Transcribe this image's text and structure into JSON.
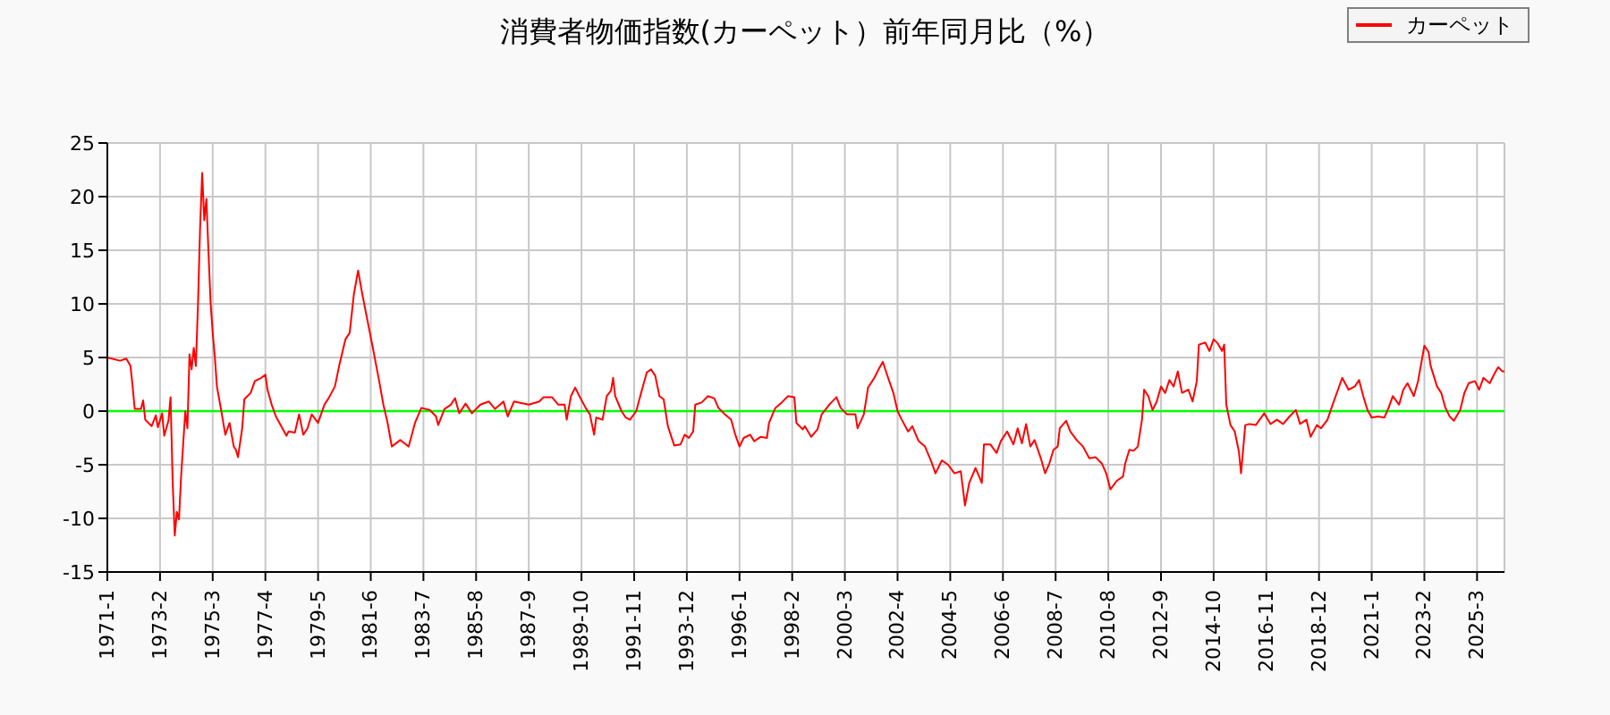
{
  "chart_data": {
    "type": "line",
    "title": "消費者物価指数(カーペット）前年同月比（%）",
    "x": [
      "1971-01",
      "1971-07",
      "1971-10",
      "1971-12",
      "1972-01",
      "1972-02",
      "1972-05",
      "1972-06",
      "1972-07",
      "1972-10",
      "1972-12",
      "1973-01",
      "1973-03",
      "1973-04",
      "1973-06",
      "1973-07",
      "1973-08",
      "1973-09",
      "1973-10",
      "1973-11",
      "1973-12",
      "1974-02",
      "1974-03",
      "1974-04",
      "1974-05",
      "1974-06",
      "1974-07",
      "1974-08",
      "1974-09",
      "1974-10",
      "1974-11",
      "1974-12",
      "1975-01",
      "1975-02",
      "1975-03",
      "1975-04",
      "1975-05",
      "1975-07",
      "1975-09",
      "1975-11",
      "1976-01",
      "1976-02",
      "1976-03",
      "1976-05",
      "1976-06",
      "1976-09",
      "1976-11",
      "1977-02",
      "1977-04",
      "1977-05",
      "1977-07",
      "1977-09",
      "1978-02",
      "1978-03",
      "1978-06",
      "1978-08",
      "1978-10",
      "1978-12",
      "1979-02",
      "1979-05",
      "1979-08",
      "1979-10",
      "1980-01",
      "1980-03",
      "1980-06",
      "1980-08",
      "1980-10",
      "1980-12",
      "1981-02",
      "1981-04",
      "1981-07",
      "1981-10",
      "1981-12",
      "1982-02",
      "1982-04",
      "1982-08",
      "1982-10",
      "1982-12",
      "1983-03",
      "1983-06",
      "1983-10",
      "1984-01",
      "1984-02",
      "1984-05",
      "1984-08",
      "1984-10",
      "1984-12",
      "1985-03",
      "1985-06",
      "1985-10",
      "1986-02",
      "1986-05",
      "1986-09",
      "1986-11",
      "1987-02",
      "1987-09",
      "1988-02",
      "1988-04",
      "1988-08",
      "1988-11",
      "1989-02",
      "1989-03",
      "1989-05",
      "1989-07",
      "1989-09",
      "1989-12",
      "1990-02",
      "1990-04",
      "1990-05",
      "1990-08",
      "1990-10",
      "1990-12",
      "1991-01",
      "1991-02",
      "1991-05",
      "1991-07",
      "1991-09",
      "1991-12",
      "1992-03",
      "1992-05",
      "1992-07",
      "1992-09",
      "1992-11",
      "1993-01",
      "1993-03",
      "1993-06",
      "1993-09",
      "1993-11",
      "1994-01",
      "1994-03",
      "1994-04",
      "1994-07",
      "1994-10",
      "1995-01",
      "1995-03",
      "1995-06",
      "1995-09",
      "1995-11",
      "1996-01",
      "1996-03",
      "1996-06",
      "1996-08",
      "1996-11",
      "1997-02",
      "1997-03",
      "1997-06",
      "1997-09",
      "1997-12",
      "1998-03",
      "1998-04",
      "1998-07",
      "1998-08",
      "1998-11",
      "1999-02",
      "1999-04",
      "1999-08",
      "1999-11",
      "2000-01",
      "2000-04",
      "2000-08",
      "2000-09",
      "2000-12",
      "2001-02",
      "2001-05",
      "2001-07",
      "2001-09",
      "2001-11",
      "2002-02",
      "2002-04",
      "2002-06",
      "2002-09",
      "2002-11",
      "2003-02",
      "2003-05",
      "2003-08",
      "2003-10",
      "2004-01",
      "2004-04",
      "2004-07",
      "2004-10",
      "2004-12",
      "2005-02",
      "2005-05",
      "2005-08",
      "2005-09",
      "2005-12",
      "2006-03",
      "2006-05",
      "2006-08",
      "2006-11",
      "2007-01",
      "2007-03",
      "2007-05",
      "2007-07",
      "2007-09",
      "2007-12",
      "2008-02",
      "2008-04",
      "2008-06",
      "2008-08",
      "2008-09",
      "2008-12",
      "2009-02",
      "2009-05",
      "2009-08",
      "2009-11",
      "2010-02",
      "2010-05",
      "2010-07",
      "2010-09",
      "2010-12",
      "2011-03",
      "2011-04",
      "2011-06",
      "2011-08",
      "2011-10",
      "2011-12",
      "2012-01",
      "2012-03",
      "2012-05",
      "2012-07",
      "2012-09",
      "2012-11",
      "2013-01",
      "2013-03",
      "2013-05",
      "2013-07",
      "2013-10",
      "2013-12",
      "2014-02",
      "2014-03",
      "2014-06",
      "2014-08",
      "2014-10",
      "2014-12",
      "2015-02",
      "2015-03",
      "2015-04",
      "2015-06",
      "2015-08",
      "2015-10",
      "2015-11",
      "2016-01",
      "2016-03",
      "2016-06",
      "2016-10",
      "2017-01",
      "2017-04",
      "2017-07",
      "2017-10",
      "2018-01",
      "2018-03",
      "2018-06",
      "2018-08",
      "2018-11",
      "2019-01",
      "2019-04",
      "2019-07",
      "2019-09",
      "2019-11",
      "2020-02",
      "2020-05",
      "2020-07",
      "2020-09",
      "2020-11",
      "2021-01",
      "2021-04",
      "2021-07",
      "2021-09",
      "2021-11",
      "2022-02",
      "2022-04",
      "2022-06",
      "2022-09",
      "2022-11",
      "2022-12",
      "2023-02",
      "2023-04",
      "2023-05",
      "2023-08",
      "2023-10",
      "2023-12",
      "2024-02",
      "2024-04",
      "2024-07",
      "2024-09",
      "2024-11",
      "2025-02",
      "2025-04",
      "2025-06",
      "2025-09",
      "2025-11",
      "2026-01",
      "2026-03",
      "2026-04"
    ],
    "series": [
      {
        "name": "カーペット",
        "color": "#ff0000",
        "values": [
          5.0,
          4.7,
          4.9,
          4.2,
          2.3,
          0.2,
          0.2,
          1.0,
          -0.8,
          -1.4,
          -0.4,
          -1.5,
          -0.2,
          -2.3,
          -0.9,
          1.3,
          -6.6,
          -11.6,
          -9.4,
          -10.1,
          -6.1,
          0.0,
          -1.6,
          5.3,
          3.9,
          5.9,
          4.2,
          9.8,
          17.0,
          22.2,
          17.8,
          19.8,
          14.8,
          10.1,
          7.3,
          5.1,
          2.3,
          0.1,
          -2.2,
          -1.1,
          -3.3,
          -3.6,
          -4.3,
          -1.6,
          1.1,
          1.7,
          2.8,
          3.1,
          3.4,
          2.0,
          0.6,
          -0.5,
          -2.3,
          -1.9,
          -2.0,
          -0.3,
          -2.2,
          -1.6,
          -0.3,
          -1.1,
          0.6,
          1.2,
          2.3,
          4.2,
          6.7,
          7.3,
          10.9,
          13.1,
          10.9,
          8.9,
          5.9,
          2.8,
          0.6,
          -1.1,
          -3.3,
          -2.7,
          -3.0,
          -3.3,
          -1.1,
          0.3,
          0.1,
          -0.5,
          -1.3,
          0.2,
          0.6,
          1.2,
          -0.2,
          0.7,
          -0.2,
          0.6,
          0.9,
          0.2,
          0.9,
          -0.5,
          0.9,
          0.6,
          0.9,
          1.3,
          1.3,
          0.6,
          0.6,
          -0.8,
          1.4,
          2.2,
          1.4,
          0.3,
          -0.3,
          -2.2,
          -0.6,
          -0.8,
          1.4,
          1.9,
          3.1,
          1.4,
          0.0,
          -0.6,
          -0.8,
          0.0,
          2.2,
          3.6,
          3.9,
          3.3,
          1.4,
          1.1,
          -1.4,
          -3.2,
          -3.1,
          -2.2,
          -2.5,
          -1.9,
          0.6,
          0.8,
          1.4,
          1.2,
          0.3,
          -0.3,
          -0.8,
          -2.2,
          -3.3,
          -2.5,
          -2.2,
          -2.8,
          -2.4,
          -2.5,
          -1.1,
          0.3,
          0.8,
          1.4,
          1.3,
          -1.1,
          -1.7,
          -1.4,
          -2.4,
          -1.7,
          -0.3,
          0.7,
          1.3,
          0.3,
          -0.3,
          -0.3,
          -1.6,
          -0.3,
          2.2,
          3.1,
          3.9,
          4.6,
          3.4,
          1.7,
          0.0,
          -0.8,
          -1.9,
          -1.4,
          -2.8,
          -3.3,
          -4.7,
          -5.8,
          -4.6,
          -5.0,
          -5.8,
          -5.6,
          -8.8,
          -6.7,
          -5.3,
          -6.7,
          -3.1,
          -3.1,
          -3.9,
          -2.8,
          -1.9,
          -3.1,
          -1.6,
          -3.0,
          -1.2,
          -3.3,
          -2.7,
          -4.4,
          -5.8,
          -4.9,
          -3.6,
          -3.3,
          -1.6,
          -0.9,
          -1.9,
          -2.7,
          -3.3,
          -4.4,
          -4.3,
          -4.9,
          -5.8,
          -7.3,
          -6.5,
          -6.1,
          -4.9,
          -3.6,
          -3.7,
          -3.3,
          -0.8,
          2.0,
          1.4,
          0.1,
          0.9,
          2.3,
          1.7,
          2.9,
          2.3,
          3.7,
          1.7,
          2.0,
          0.9,
          2.8,
          6.2,
          6.4,
          5.6,
          6.7,
          6.3,
          5.6,
          6.2,
          0.6,
          -1.3,
          -1.9,
          -3.8,
          -5.8,
          -1.3,
          -1.2,
          -1.3,
          -0.2,
          -1.2,
          -0.8,
          -1.2,
          -0.5,
          0.1,
          -1.2,
          -0.8,
          -2.4,
          -1.3,
          -1.6,
          -0.8,
          0.9,
          2.0,
          3.1,
          2.0,
          2.3,
          2.9,
          1.4,
          0.1,
          -0.6,
          -0.5,
          -0.6,
          0.3,
          1.4,
          0.6,
          2.0,
          2.6,
          1.4,
          2.8,
          3.9,
          6.1,
          5.5,
          4.2,
          2.3,
          1.7,
          0.3,
          -0.5,
          -0.9,
          0.1,
          1.7,
          2.6,
          2.8,
          2.0,
          3.1,
          2.6,
          3.4,
          4.1,
          3.7,
          3.7
        ]
      }
    ],
    "xlim": [
      "1971-01",
      "2026-04"
    ],
    "xticks": [
      {
        "value": "1971-01",
        "label": "1971-1"
      },
      {
        "value": "1973-02",
        "label": "1973-2"
      },
      {
        "value": "1975-03",
        "label": "1975-3"
      },
      {
        "value": "1977-04",
        "label": "1977-4"
      },
      {
        "value": "1979-05",
        "label": "1979-5"
      },
      {
        "value": "1981-06",
        "label": "1981-6"
      },
      {
        "value": "1983-07",
        "label": "1983-7"
      },
      {
        "value": "1985-08",
        "label": "1985-8"
      },
      {
        "value": "1987-09",
        "label": "1987-9"
      },
      {
        "value": "1989-10",
        "label": "1989-10"
      },
      {
        "value": "1991-11",
        "label": "1991-11"
      },
      {
        "value": "1993-12",
        "label": "1993-12"
      },
      {
        "value": "1996-01",
        "label": "1996-1"
      },
      {
        "value": "1998-02",
        "label": "1998-2"
      },
      {
        "value": "2000-03",
        "label": "2000-3"
      },
      {
        "value": "2002-04",
        "label": "2002-4"
      },
      {
        "value": "2004-05",
        "label": "2004-5"
      },
      {
        "value": "2006-06",
        "label": "2006-6"
      },
      {
        "value": "2008-07",
        "label": "2008-7"
      },
      {
        "value": "2010-08",
        "label": "2010-8"
      },
      {
        "value": "2012-09",
        "label": "2012-9"
      },
      {
        "value": "2014-10",
        "label": "2014-10"
      },
      {
        "value": "2016-11",
        "label": "2016-11"
      },
      {
        "value": "2018-12",
        "label": "2018-12"
      },
      {
        "value": "2021-01",
        "label": "2021-1"
      },
      {
        "value": "2023-02",
        "label": "2023-2"
      },
      {
        "value": "2025-03",
        "label": "2025-3"
      }
    ],
    "ylim": [
      -15,
      25
    ],
    "yticks": [
      -15,
      -10,
      -5,
      0,
      5,
      10,
      15,
      20,
      25
    ],
    "grid": true,
    "legend": "top right",
    "ref_lines": [
      {
        "axis": "y",
        "value": 0,
        "color": "#00ff00"
      }
    ]
  }
}
